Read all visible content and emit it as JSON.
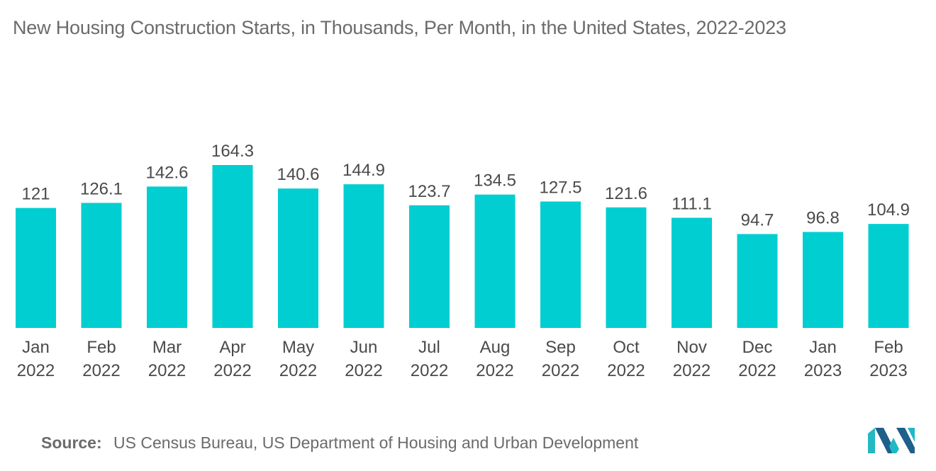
{
  "title": "New Housing Construction Starts, in Thousands, Per Month, in the United States, 2022-2023",
  "source": {
    "label": "Source:",
    "text": "US Census Bureau, US Department of Housing and Urban Development"
  },
  "colors": {
    "bar": "#00ced1",
    "text": "#4a4a4a",
    "muted": "#6b6b6b",
    "logo_teal": "#22b8c4",
    "logo_blue": "#1f5f8b"
  },
  "chart_data": {
    "type": "bar",
    "title": "New Housing Construction Starts, in Thousands, Per Month, in the United States, 2022-2023",
    "xlabel": "",
    "ylabel": "",
    "ylim": [
      0,
      170
    ],
    "grid": false,
    "categories": [
      [
        "Jan",
        "2022"
      ],
      [
        "Feb",
        "2022"
      ],
      [
        "Mar",
        "2022"
      ],
      [
        "Apr",
        "2022"
      ],
      [
        "May",
        "2022"
      ],
      [
        "Jun",
        "2022"
      ],
      [
        "Jul",
        "2022"
      ],
      [
        "Aug",
        "2022"
      ],
      [
        "Sep",
        "2022"
      ],
      [
        "Oct",
        "2022"
      ],
      [
        "Nov",
        "2022"
      ],
      [
        "Dec",
        "2022"
      ],
      [
        "Jan",
        "2023"
      ],
      [
        "Feb",
        "2023"
      ]
    ],
    "values": [
      121,
      126.1,
      142.6,
      164.3,
      140.6,
      144.9,
      123.7,
      134.5,
      127.5,
      121.6,
      111.1,
      94.7,
      96.8,
      104.9
    ],
    "value_labels": [
      "121",
      "126.1",
      "142.6",
      "164.3",
      "140.6",
      "144.9",
      "123.7",
      "134.5",
      "127.5",
      "121.6",
      "111.1",
      "94.7",
      "96.8",
      "104.9"
    ]
  }
}
